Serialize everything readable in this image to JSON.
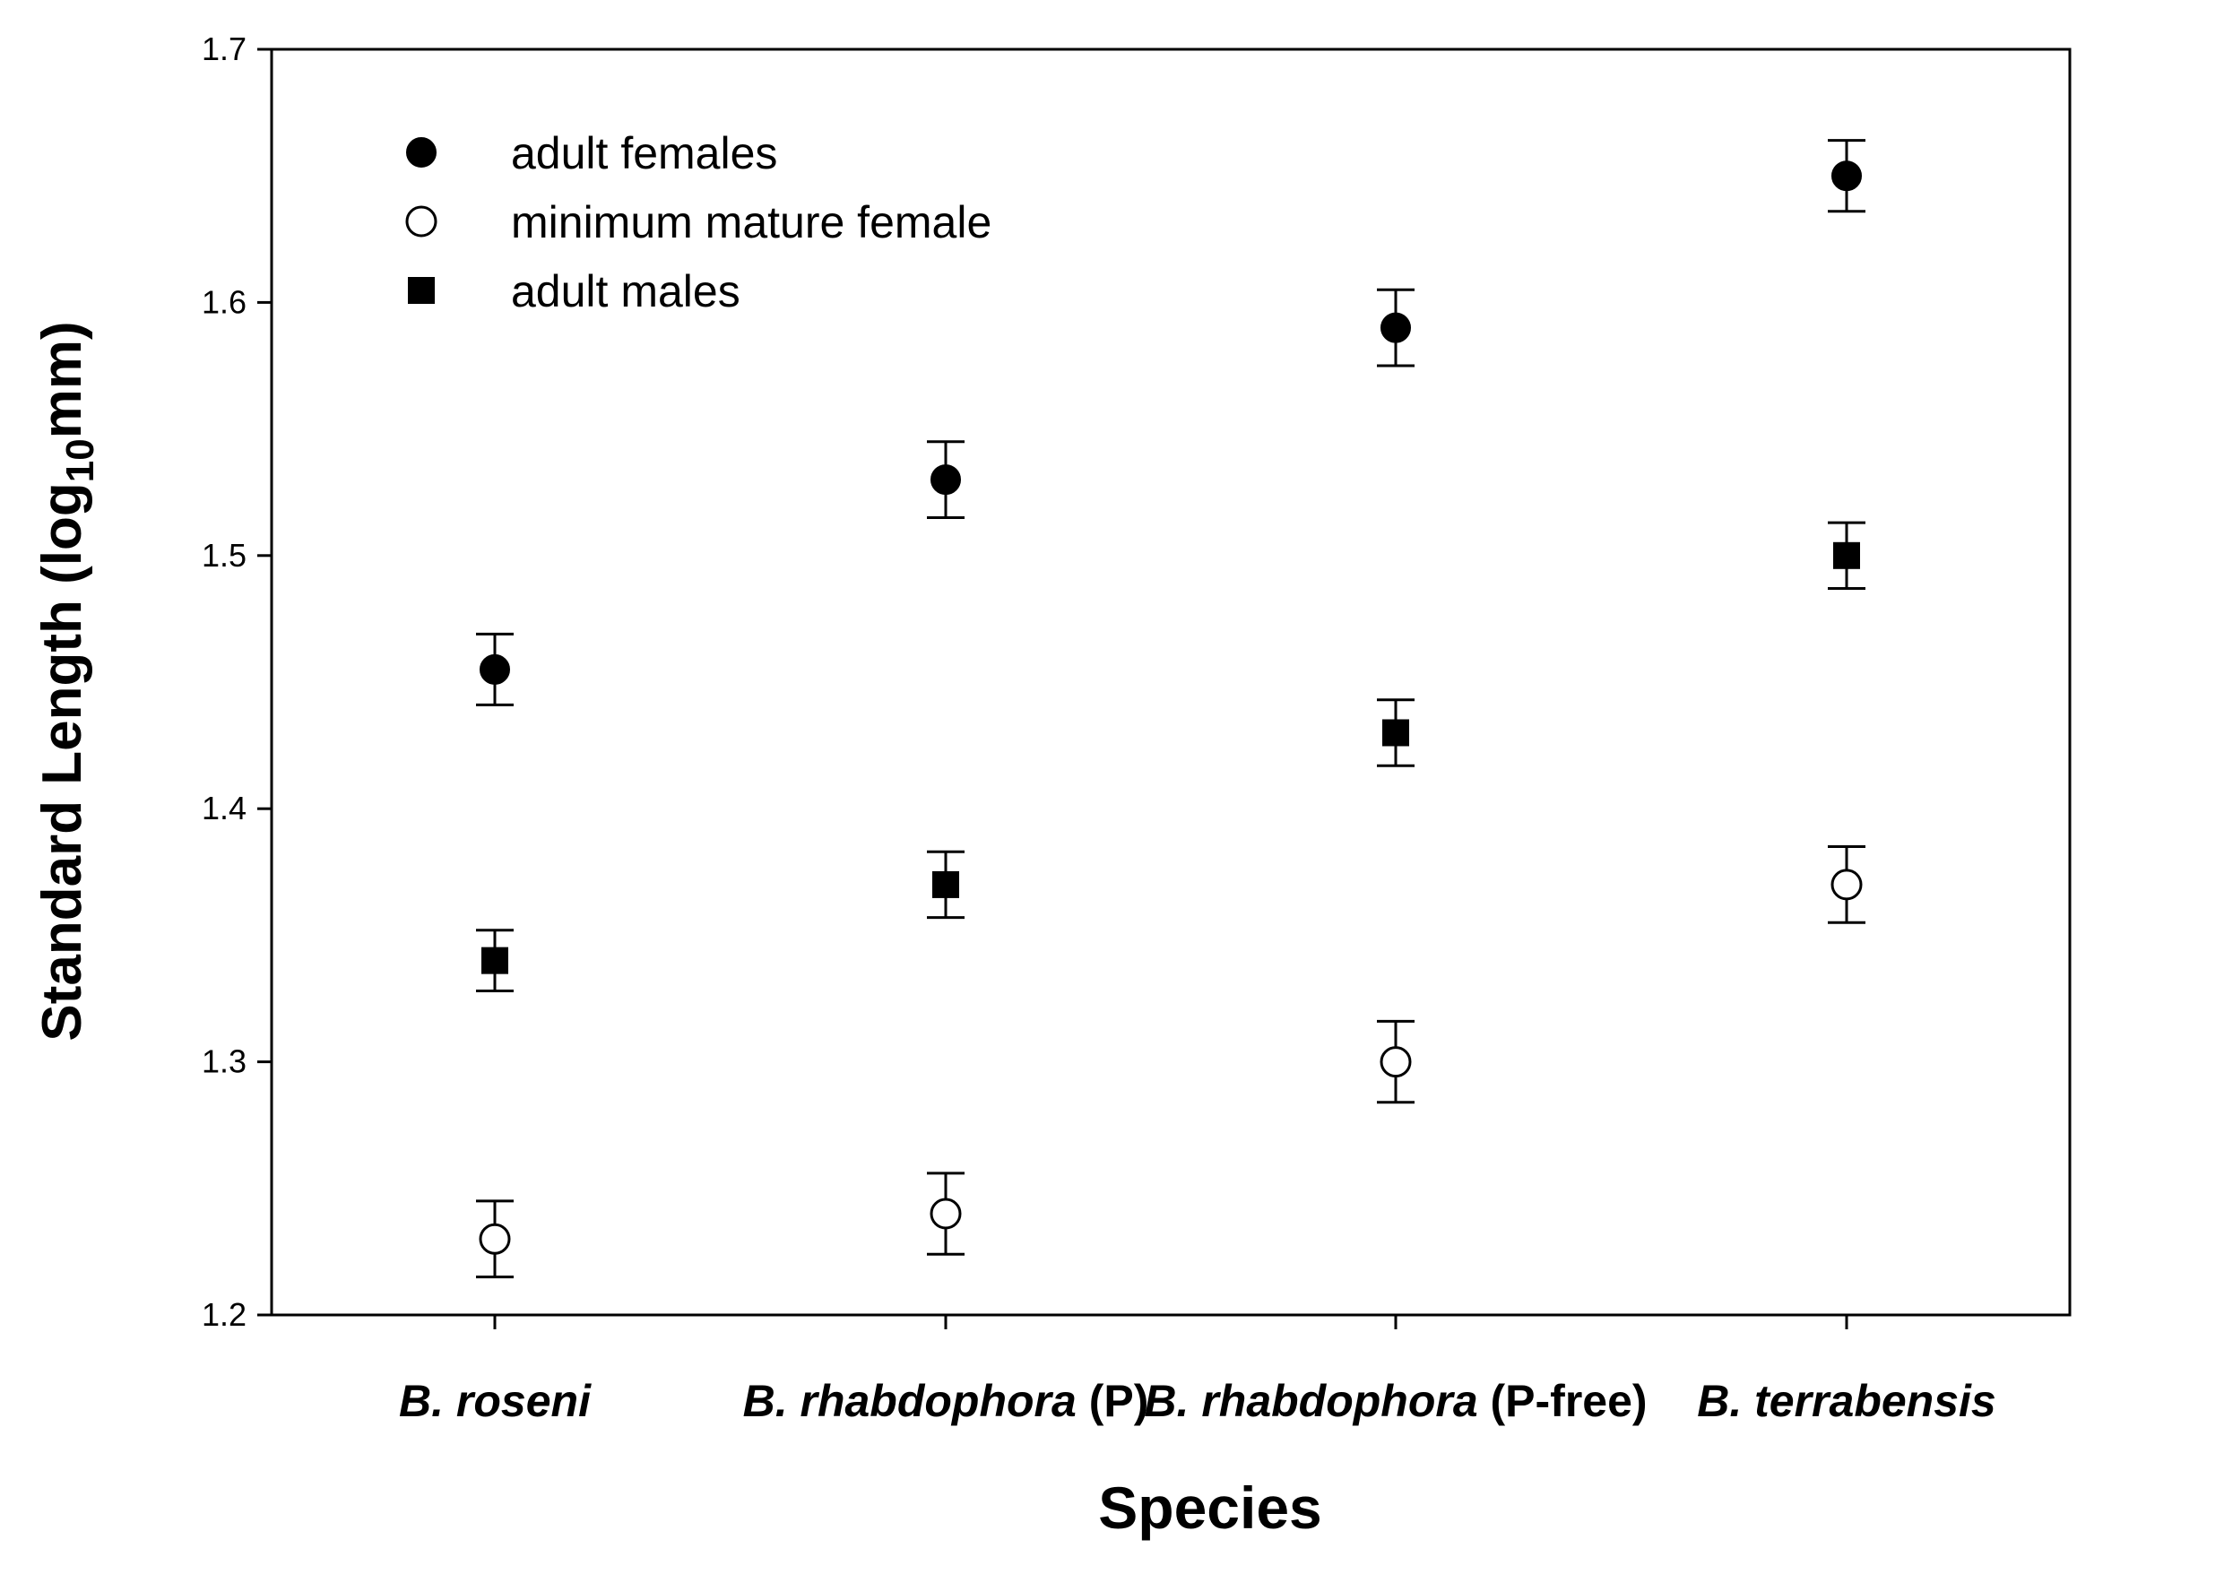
{
  "chart_data": {
    "type": "scatter",
    "categories": [
      {
        "species": "B. roseni",
        "note": ""
      },
      {
        "species": "B. rhabdophora",
        "note": " (P)"
      },
      {
        "species": "B. rhabdophora",
        "note": " (P-free)"
      },
      {
        "species": "B. terrabensis",
        "note": ""
      }
    ],
    "xlabel": "Species",
    "ylabel_main": "Standard Length (log",
    "ylabel_sub": "10",
    "ylabel_end": "mm)",
    "ylim": [
      1.2,
      1.7
    ],
    "yticks": [
      "1.2",
      "1.3",
      "1.4",
      "1.5",
      "1.6",
      "1.7"
    ],
    "legend_position": "top-left",
    "series": [
      {
        "name": "adult females",
        "marker": "filled-circle",
        "values": [
          1.455,
          1.53,
          1.59,
          1.65
        ],
        "errors": [
          0.014,
          0.015,
          0.015,
          0.014
        ]
      },
      {
        "name": "minimum mature female",
        "marker": "open-circle",
        "values": [
          1.23,
          1.24,
          1.3,
          1.37
        ],
        "errors": [
          0.015,
          0.016,
          0.016,
          0.015
        ]
      },
      {
        "name": "adult males",
        "marker": "filled-square",
        "values": [
          1.34,
          1.37,
          1.43,
          1.5
        ],
        "errors": [
          0.012,
          0.013,
          0.013,
          0.013
        ]
      }
    ]
  }
}
